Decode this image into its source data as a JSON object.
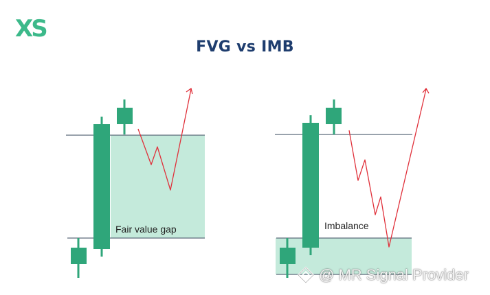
{
  "brand": {
    "logo_text": "XS",
    "accent": "#3cb98a"
  },
  "title": "FVG vs IMB",
  "colors": {
    "title": "#1e3d6e",
    "candle": "#2fa67a",
    "zone_fill": "#c4eadb",
    "level_line": "#5c6b7a",
    "price_arrow": "#e0303a"
  },
  "panels": [
    {
      "label": "Fair value gap"
    },
    {
      "label": "Imbalance"
    }
  ],
  "watermark": {
    "text": "@ MR Signal Provider",
    "icon": "diamond-logo-icon"
  }
}
